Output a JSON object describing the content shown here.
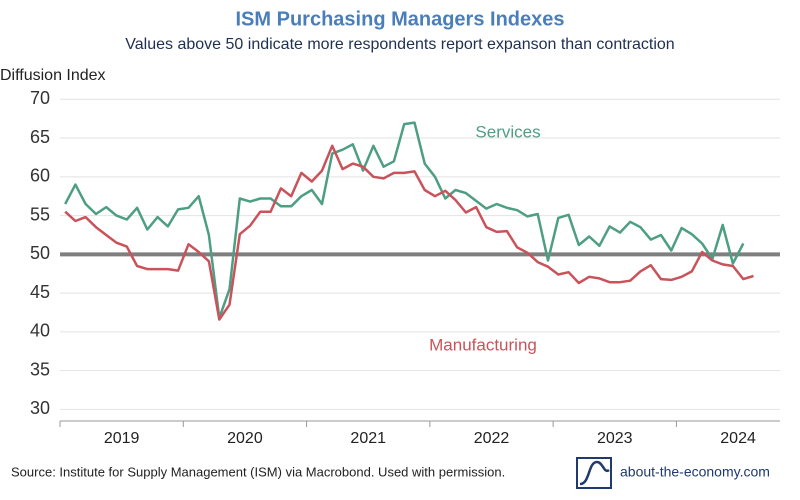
{
  "chart_data": {
    "type": "line",
    "title": "ISM Purchasing Managers Indexes",
    "subtitle": "Values above 50 indicate more respondents report expanson than contraction",
    "y_label": "Diffusion Index",
    "source": "Source: Institute for Supply Management (ISM) via Macrobond. Used with permission.",
    "brand": "about-the-economy.com",
    "x": [
      2019.042,
      2019.125,
      2019.208,
      2019.292,
      2019.375,
      2019.458,
      2019.542,
      2019.625,
      2019.708,
      2019.792,
      2019.875,
      2019.958,
      2020.042,
      2020.125,
      2020.208,
      2020.292,
      2020.375,
      2020.458,
      2020.542,
      2020.625,
      2020.708,
      2020.792,
      2020.875,
      2020.958,
      2021.042,
      2021.125,
      2021.208,
      2021.292,
      2021.375,
      2021.458,
      2021.542,
      2021.625,
      2021.708,
      2021.792,
      2021.875,
      2021.958,
      2022.042,
      2022.125,
      2022.208,
      2022.292,
      2022.375,
      2022.458,
      2022.542,
      2022.625,
      2022.708,
      2022.792,
      2022.875,
      2022.958,
      2023.042,
      2023.125,
      2023.208,
      2023.292,
      2023.375,
      2023.458,
      2023.542,
      2023.625,
      2023.708,
      2023.792,
      2023.875,
      2023.958,
      2024.042,
      2024.125,
      2024.208,
      2024.292,
      2024.375,
      2024.458,
      2024.542,
      2024.625
    ],
    "series": [
      {
        "name": "Services",
        "color": "#4e9e84",
        "values": [
          56.5,
          59,
          56.5,
          55.2,
          56.1,
          55,
          54.5,
          56,
          53.2,
          54.8,
          53.6,
          55.8,
          56,
          57.5,
          52.5,
          41.8,
          45.5,
          57.2,
          56.8,
          57.2,
          57.2,
          56.2,
          56.2,
          57.5,
          58.3,
          56.5,
          63,
          63.5,
          64.2,
          60.8,
          64,
          61.3,
          62,
          66.8,
          67,
          61.7,
          60,
          57.2,
          58.3,
          57.9,
          56.9,
          55.9,
          56.5,
          56,
          55.7,
          54.9,
          55.2,
          49.2,
          54.7,
          55.1,
          51.2,
          52.3,
          51.1,
          53.6,
          52.8,
          54.2,
          53.5,
          51.9,
          52.5,
          50.5,
          53.4,
          52.6,
          51.4,
          49.4,
          53.8,
          48.8,
          51.4,
          null
        ]
      },
      {
        "name": "Manufacturing",
        "color": "#c9535a",
        "values": [
          55.5,
          54.3,
          54.8,
          53.5,
          52.5,
          51.5,
          51,
          48.5,
          48.1,
          48.1,
          48.1,
          47.9,
          51.3,
          50.3,
          49.1,
          41.6,
          43.5,
          52.6,
          53.7,
          55.5,
          55.5,
          58.5,
          57.5,
          60.5,
          59.4,
          60.8,
          64,
          61,
          61.7,
          61.3,
          60,
          59.8,
          60.5,
          60.5,
          60.7,
          58.3,
          57.5,
          58.2,
          57,
          55.4,
          56.1,
          53.5,
          52.9,
          53,
          50.9,
          50.2,
          49,
          48.4,
          47.4,
          47.7,
          46.3,
          47.1,
          46.9,
          46.4,
          46.4,
          46.6,
          47.8,
          48.6,
          46.8,
          46.7,
          47.1,
          47.8,
          50.3,
          49.2,
          48.7,
          48.5,
          46.8,
          47.2
        ]
      }
    ],
    "xlim": [
      2019,
      2024.84
    ],
    "xticks": [
      {
        "value": 2019.5,
        "label": "2019"
      },
      {
        "value": 2020.5,
        "label": "2020"
      },
      {
        "value": 2021.5,
        "label": "2021"
      },
      {
        "value": 2022.5,
        "label": "2022"
      },
      {
        "value": 2023.5,
        "label": "2023"
      },
      {
        "value": 2024.5,
        "label": "2024"
      }
    ],
    "ylim": [
      28.5,
      71.2
    ],
    "yticks": [
      30,
      35,
      40,
      45,
      50,
      55,
      60,
      65,
      70
    ],
    "reference_line": 50,
    "grid": true
  }
}
